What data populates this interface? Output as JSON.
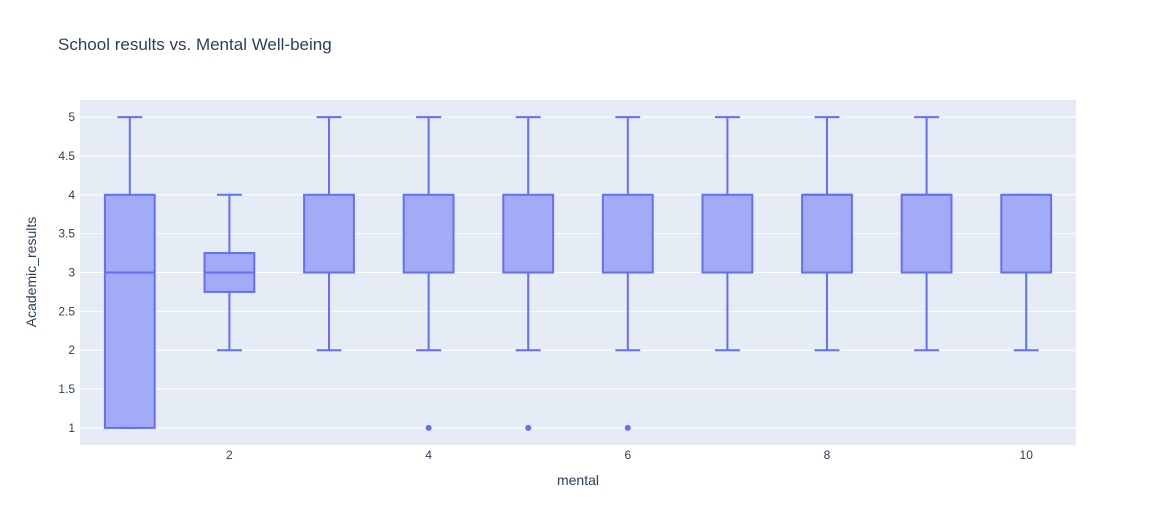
{
  "chart_data": {
    "type": "box",
    "title": "School results vs. Mental Well-being",
    "xlabel": "mental",
    "ylabel": "Academic_results",
    "xlim": [
      0.5,
      10.5
    ],
    "ylim": [
      0.78,
      5.22
    ],
    "xticks": [
      2,
      4,
      6,
      8,
      10
    ],
    "yticks": [
      1,
      1.5,
      2,
      2.5,
      3,
      3.5,
      4,
      4.5,
      5
    ],
    "grid": true,
    "colors": {
      "plot_bg": "#E5ECF6",
      "grid": "#ffffff",
      "box_line": "#636EFA",
      "box_fill": "#A3ABF7",
      "text": "#2a3f5f"
    },
    "boxes": [
      {
        "x": 1,
        "lowerfence": 1,
        "q1": 1,
        "median": 3,
        "q3": 4,
        "upperfence": 5,
        "outliers": []
      },
      {
        "x": 2,
        "lowerfence": 2,
        "q1": 2.75,
        "median": 3,
        "q3": 3.25,
        "upperfence": 4,
        "outliers": []
      },
      {
        "x": 3,
        "lowerfence": 2,
        "q1": 3,
        "median": 3,
        "q3": 4,
        "upperfence": 5,
        "outliers": []
      },
      {
        "x": 4,
        "lowerfence": 2,
        "q1": 3,
        "median": 3,
        "q3": 4,
        "upperfence": 5,
        "outliers": [
          1
        ]
      },
      {
        "x": 5,
        "lowerfence": 2,
        "q1": 3,
        "median": 3,
        "q3": 4,
        "upperfence": 5,
        "outliers": [
          1
        ]
      },
      {
        "x": 6,
        "lowerfence": 2,
        "q1": 3,
        "median": 3,
        "q3": 4,
        "upperfence": 5,
        "outliers": [
          1
        ]
      },
      {
        "x": 7,
        "lowerfence": 2,
        "q1": 3,
        "median": 3,
        "q3": 4,
        "upperfence": 5,
        "outliers": []
      },
      {
        "x": 8,
        "lowerfence": 2,
        "q1": 3,
        "median": 4,
        "q3": 4,
        "upperfence": 5,
        "outliers": []
      },
      {
        "x": 9,
        "lowerfence": 2,
        "q1": 3,
        "median": 4,
        "q3": 4,
        "upperfence": 5,
        "outliers": []
      },
      {
        "x": 10,
        "lowerfence": 2,
        "q1": 3,
        "median": 3,
        "q3": 4,
        "upperfence": 4,
        "outliers": []
      }
    ]
  }
}
